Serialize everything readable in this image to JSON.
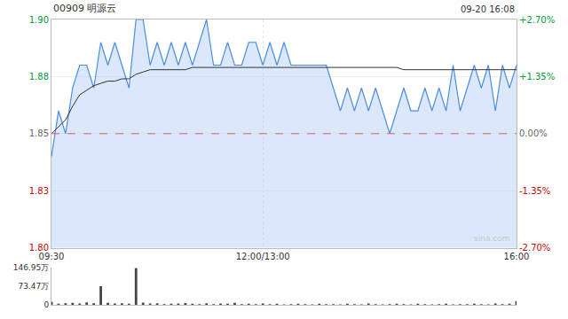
{
  "chart_data": [
    {
      "type": "line",
      "title": "00909 明源云",
      "subtitle": "09-20 16:08",
      "annotations": [
        "sina.com"
      ],
      "categories": [
        "09:30",
        null,
        null,
        null,
        null,
        null,
        null,
        null,
        null,
        null,
        null,
        null,
        null,
        null,
        null,
        null,
        null,
        null,
        null,
        null,
        null,
        null,
        null,
        null,
        null,
        null,
        null,
        null,
        null,
        null,
        "12:00/13:00",
        null,
        null,
        null,
        null,
        null,
        null,
        null,
        null,
        null,
        null,
        null,
        null,
        null,
        null,
        null,
        null,
        null,
        null,
        null,
        null,
        null,
        null,
        null,
        null,
        null,
        null,
        null,
        null,
        null,
        null,
        null,
        null,
        null,
        null,
        null,
        "16:00"
      ],
      "series": [
        {
          "type": "area",
          "color": "#4a8de0",
          "values": [
            1.84,
            1.86,
            1.85,
            1.87,
            1.88,
            1.88,
            1.87,
            1.89,
            1.88,
            1.89,
            1.88,
            1.87,
            1.9,
            1.9,
            1.88,
            1.89,
            1.88,
            1.89,
            1.88,
            1.89,
            1.88,
            1.89,
            1.9,
            1.88,
            1.88,
            1.89,
            1.88,
            1.88,
            1.89,
            1.89,
            1.88,
            1.89,
            1.88,
            1.89,
            1.88,
            1.88,
            1.88,
            1.88,
            1.88,
            1.88,
            1.87,
            1.86,
            1.87,
            1.86,
            1.87,
            1.86,
            1.87,
            1.86,
            1.85,
            1.86,
            1.87,
            1.86,
            1.86,
            1.87,
            1.86,
            1.87,
            1.86,
            1.88,
            1.86,
            1.87,
            1.88,
            1.87,
            1.88,
            1.86,
            1.88,
            1.87,
            1.88
          ]
        },
        {
          "type": "line",
          "color": "#333333",
          "values": [
            1.85,
            1.853,
            1.856,
            1.862,
            1.867,
            1.869,
            1.871,
            1.872,
            1.873,
            1.873,
            1.874,
            1.874,
            1.876,
            1.877,
            1.878,
            1.878,
            1.878,
            1.878,
            1.878,
            1.878,
            1.879,
            1.879,
            1.879,
            1.879,
            1.879,
            1.879,
            1.879,
            1.879,
            1.879,
            1.879,
            1.879,
            1.879,
            1.879,
            1.879,
            1.879,
            1.879,
            1.879,
            1.879,
            1.879,
            1.879,
            1.879,
            1.879,
            1.879,
            1.879,
            1.879,
            1.879,
            1.879,
            1.879,
            1.879,
            1.879,
            1.878,
            1.878,
            1.878,
            1.878,
            1.878,
            1.878,
            1.878,
            1.878,
            1.878,
            1.878,
            1.878,
            1.878,
            1.878,
            1.878,
            1.878,
            1.878,
            1.878
          ]
        }
      ],
      "ylim": [
        1.8,
        1.9
      ],
      "yticks": [
        {
          "value": 1.8,
          "label": "1.80"
        },
        {
          "value": 1.825,
          "label": "1.83"
        },
        1.85,
        {
          "value": 1.875,
          "label": "1.88"
        },
        {
          "value": 1.9,
          "label": "1.90"
        }
      ],
      "y2lim": [
        -2.7,
        2.7
      ],
      "y2ticks": [
        {
          "value": -2.7,
          "label": "-2.70%"
        },
        {
          "value": -1.35,
          "label": "-1.35%"
        },
        {
          "value": 0,
          "label": "0.00%"
        },
        {
          "value": 1.35,
          "label": "+1.35%"
        },
        {
          "value": 2.7,
          "label": "+2.70%"
        }
      ],
      "grid": true
    },
    {
      "type": "bar",
      "color": "#444444",
      "tick_labels": "y",
      "categories": [
        "09:30",
        null,
        null,
        null,
        null,
        null,
        null,
        null,
        null,
        null,
        null,
        null,
        null,
        null,
        null,
        null,
        null,
        null,
        null,
        null,
        null,
        null,
        null,
        null,
        null,
        null,
        null,
        null,
        null,
        null,
        "12:00/13:00",
        null,
        null,
        null,
        null,
        null,
        null,
        null,
        null,
        null,
        null,
        null,
        null,
        null,
        null,
        null,
        null,
        null,
        null,
        null,
        null,
        null,
        null,
        null,
        null,
        null,
        null,
        null,
        null,
        null,
        null,
        null,
        null,
        null,
        null,
        null,
        "16:00"
      ],
      "values": [
        12,
        4,
        6,
        8,
        5,
        10,
        6,
        74,
        8,
        5,
        6,
        4,
        146,
        9,
        5,
        6,
        3,
        4,
        5,
        7,
        4,
        3,
        6,
        3,
        5,
        4,
        8,
        3,
        4,
        3,
        5,
        3,
        4,
        2,
        3,
        4,
        3,
        2,
        4,
        3,
        3,
        2,
        4,
        3,
        2,
        5,
        3,
        2,
        3,
        4,
        3,
        2,
        4,
        3,
        2,
        3,
        4,
        2,
        3,
        3,
        4,
        3,
        2,
        5,
        3,
        4,
        15
      ],
      "ylim": [
        0,
        146.95
      ],
      "yticks": [
        0,
        {
          "value": 73.47,
          "label": "73.47万"
        },
        {
          "value": 146.95,
          "label": "146.95万"
        }
      ],
      "grid": false
    }
  ]
}
